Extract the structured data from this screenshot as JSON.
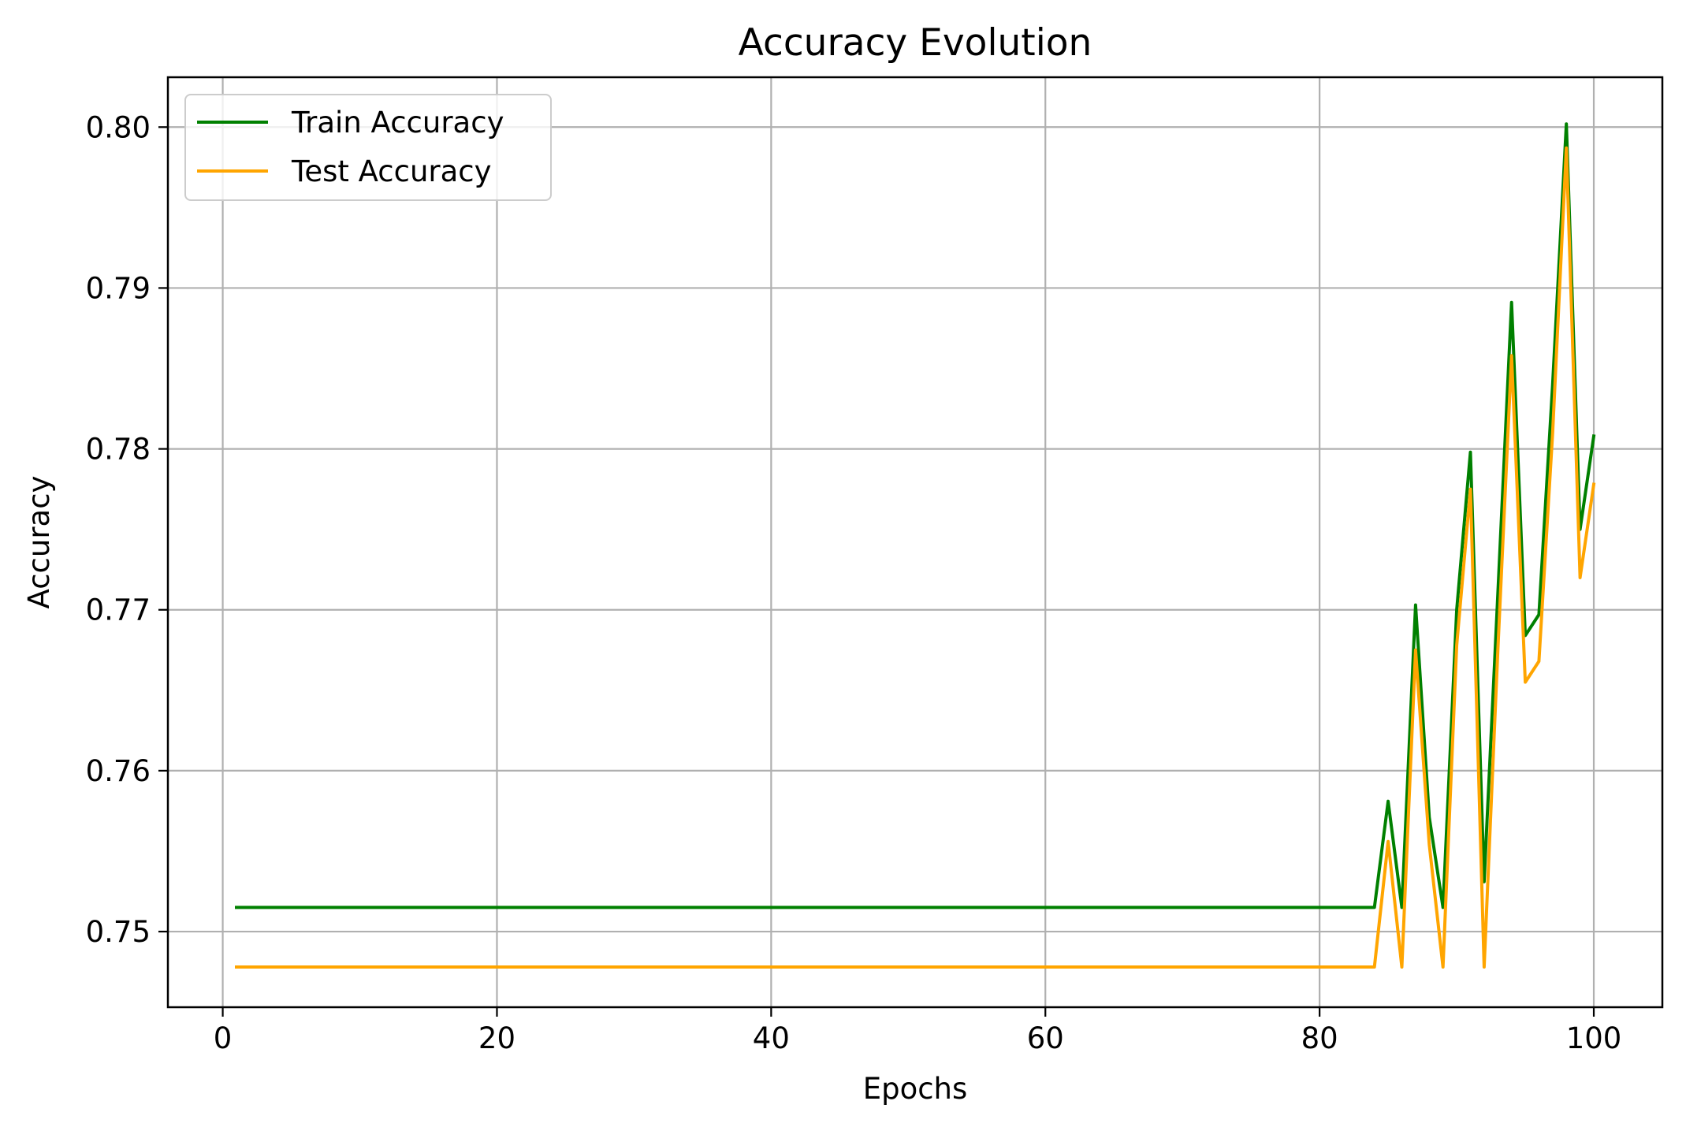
{
  "chart_data": {
    "type": "line",
    "title": "Accuracy Evolution",
    "xlabel": "Epochs",
    "ylabel": "Accuracy",
    "xlim": [
      -4,
      105
    ],
    "ylim": [
      0.7453,
      0.8031
    ],
    "xticks": [
      0,
      20,
      40,
      60,
      80,
      100
    ],
    "xtick_labels": [
      "0",
      "20",
      "40",
      "60",
      "80",
      "100"
    ],
    "yticks": [
      0.75,
      0.76,
      0.77,
      0.78,
      0.79,
      0.8
    ],
    "ytick_labels": [
      "0.75",
      "0.76",
      "0.77",
      "0.78",
      "0.79",
      "0.80"
    ],
    "grid": true,
    "legend_position": "top-left",
    "x": [
      1,
      84,
      85,
      86,
      87,
      88,
      89,
      90,
      91,
      92,
      93,
      94,
      95,
      96,
      97,
      98,
      99,
      100
    ],
    "series": [
      {
        "name": "Train Accuracy",
        "color": "#008000",
        "values": [
          0.7515,
          0.7515,
          0.7581,
          0.7515,
          0.7703,
          0.7571,
          0.7515,
          0.77,
          0.7798,
          0.7531,
          0.771,
          0.7891,
          0.7684,
          0.7697,
          0.784,
          0.8002,
          0.775,
          0.7808
        ]
      },
      {
        "name": "Test Accuracy",
        "color": "#ffa500",
        "values": [
          0.7478,
          0.7478,
          0.7556,
          0.7478,
          0.7675,
          0.7554,
          0.7478,
          0.7678,
          0.7775,
          0.7478,
          0.7675,
          0.7858,
          0.7655,
          0.7668,
          0.781,
          0.7987,
          0.772,
          0.7778
        ]
      }
    ]
  }
}
